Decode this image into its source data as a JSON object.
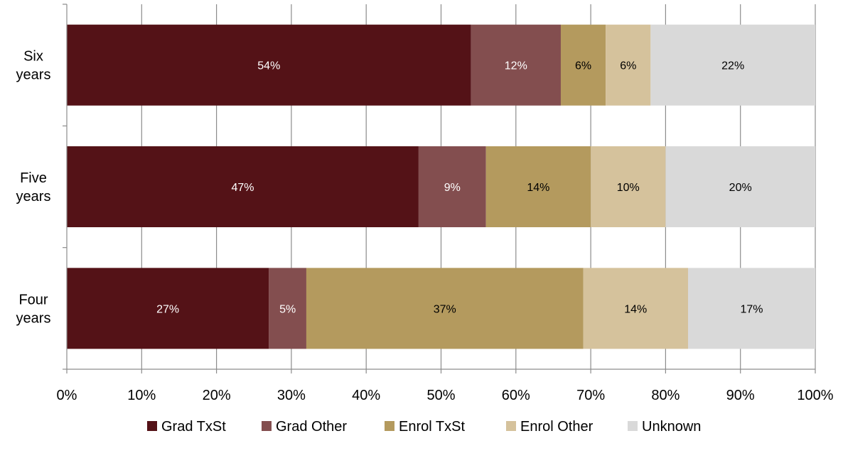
{
  "chart_data": {
    "type": "bar",
    "orientation": "horizontal",
    "stacked": true,
    "percent_stacked": true,
    "title": "",
    "xlabel": "",
    "ylabel": "",
    "categories": [
      [
        "Six",
        "years"
      ],
      [
        "Five",
        "years"
      ],
      [
        "Four",
        "years"
      ]
    ],
    "series": [
      {
        "name": "Grad TxSt",
        "color": "#541217",
        "label_color": "#ffffff",
        "values": [
          54,
          47,
          27
        ]
      },
      {
        "name": "Grad Other",
        "color": "#834e4f",
        "label_color": "#ffffff",
        "values": [
          12,
          9,
          5
        ]
      },
      {
        "name": "Enrol TxSt",
        "color": "#b49a5e",
        "label_color": "#000000",
        "values": [
          6,
          14,
          37
        ]
      },
      {
        "name": "Enrol Other",
        "color": "#d5c29c",
        "label_color": "#000000",
        "values": [
          6,
          10,
          14
        ]
      },
      {
        "name": "Unknown",
        "color": "#d9d9d9",
        "label_color": "#000000",
        "values": [
          22,
          20,
          17
        ]
      }
    ],
    "data_labels": [
      [
        "54%",
        "47%",
        "27%"
      ],
      [
        "12%",
        "9%",
        "5%"
      ],
      [
        "6%",
        "14%",
        "37%"
      ],
      [
        "6%",
        "10%",
        "14%"
      ],
      [
        "22%",
        "20%",
        "17%"
      ]
    ],
    "xlim": [
      0,
      100
    ],
    "x_ticks": [
      "0%",
      "10%",
      "20%",
      "30%",
      "40%",
      "50%",
      "60%",
      "70%",
      "80%",
      "90%",
      "100%"
    ],
    "grid": "vertical",
    "legend_position": "bottom"
  }
}
